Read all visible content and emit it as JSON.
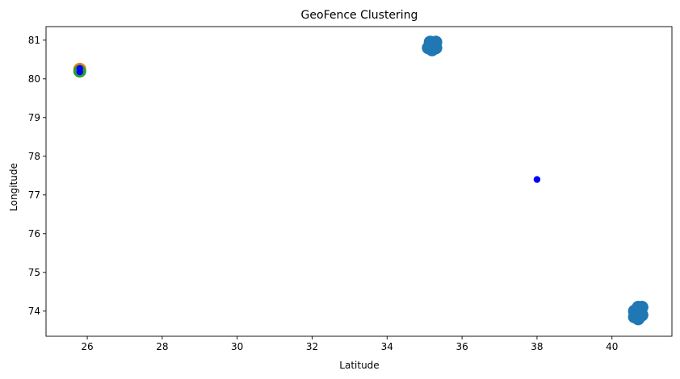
{
  "chart_data": {
    "type": "scatter",
    "title": "GeoFence Clustering",
    "xlabel": "Latitude",
    "ylabel": "Longitude",
    "xlim": [
      24.9,
      41.6
    ],
    "ylim": [
      73.35,
      81.35
    ],
    "xticks": [
      26,
      28,
      30,
      32,
      34,
      36,
      38,
      40
    ],
    "yticks": [
      74,
      75,
      76,
      77,
      78,
      79,
      80,
      81
    ],
    "grid": false,
    "series": [
      {
        "color": "#1f77b4",
        "marker_size": "large",
        "points": [
          {
            "x": 35.1,
            "y": 80.8
          },
          {
            "x": 35.2,
            "y": 80.9
          },
          {
            "x": 35.3,
            "y": 80.8
          },
          {
            "x": 35.2,
            "y": 80.75
          },
          {
            "x": 35.15,
            "y": 80.95
          },
          {
            "x": 35.3,
            "y": 80.95
          },
          {
            "x": 40.6,
            "y": 74.0
          },
          {
            "x": 40.7,
            "y": 74.1
          },
          {
            "x": 40.8,
            "y": 73.9
          },
          {
            "x": 40.7,
            "y": 73.8
          },
          {
            "x": 40.6,
            "y": 73.85
          },
          {
            "x": 40.8,
            "y": 74.1
          },
          {
            "x": 40.7,
            "y": 74.0
          }
        ]
      },
      {
        "color": "#ff7f0e",
        "marker_size": "large",
        "points": [
          {
            "x": 25.8,
            "y": 80.25
          }
        ]
      },
      {
        "color": "#2ca02c",
        "marker_size": "large",
        "points": [
          {
            "x": 25.8,
            "y": 80.2
          }
        ]
      },
      {
        "color": "#0000ff",
        "marker_size": "small",
        "points": [
          {
            "x": 25.8,
            "y": 80.27
          },
          {
            "x": 25.8,
            "y": 80.18
          },
          {
            "x": 38.0,
            "y": 77.4
          }
        ]
      }
    ]
  }
}
